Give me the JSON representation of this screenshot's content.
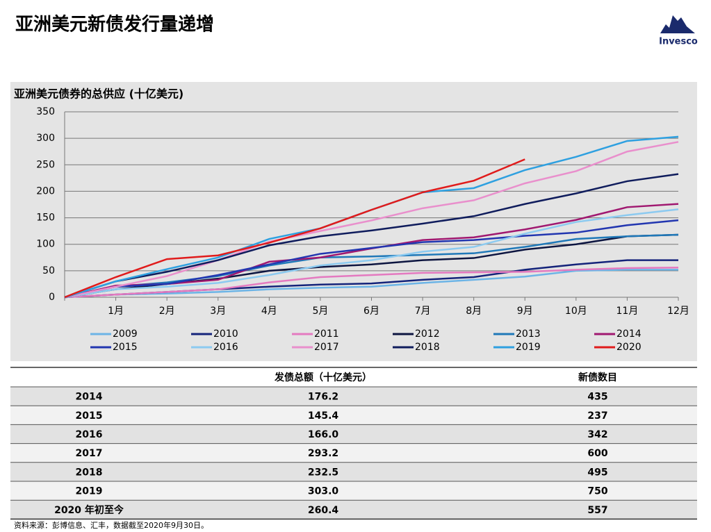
{
  "title": "亚洲美元新债发行量递增",
  "logo": "Invesco",
  "chart_data": {
    "type": "line",
    "title": "亚洲美元债券的总供应 (十亿美元)",
    "categories": [
      null,
      "1月",
      "2月",
      "3月",
      "4月",
      "5月",
      "6月",
      "7月",
      "8月",
      "9月",
      "10月",
      "11月",
      "12月"
    ],
    "ylim": [
      0,
      350
    ],
    "yticks": [
      0,
      50,
      100,
      150,
      200,
      250,
      300,
      350
    ],
    "grid": true,
    "series": [
      {
        "name": "2009",
        "color": "#6cb4e6",
        "values": [
          0,
          5,
          7,
          10,
          15,
          18,
          20,
          27,
          33,
          39,
          50,
          52,
          52
        ]
      },
      {
        "name": "2010",
        "color": "#14237a",
        "values": [
          0,
          5,
          10,
          15,
          20,
          24,
          26,
          33,
          38,
          52,
          62,
          70,
          70
        ]
      },
      {
        "name": "2011",
        "color": "#e47ac0",
        "values": [
          0,
          5,
          10,
          15,
          28,
          38,
          42,
          46,
          47,
          48,
          52,
          55,
          56
        ]
      },
      {
        "name": "2012",
        "color": "#0d1540",
        "values": [
          0,
          15,
          25,
          35,
          50,
          57,
          62,
          70,
          74,
          90,
          100,
          115,
          118
        ]
      },
      {
        "name": "2013",
        "color": "#1f78b8",
        "values": [
          0,
          20,
          28,
          40,
          60,
          75,
          77,
          80,
          83,
          95,
          110,
          115,
          118
        ]
      },
      {
        "name": "2014",
        "color": "#a01870",
        "values": [
          0,
          22,
          25,
          33,
          67,
          75,
          92,
          108,
          113,
          128,
          146,
          170,
          176.2
        ]
      },
      {
        "name": "2015",
        "color": "#2236b0",
        "values": [
          0,
          20,
          25,
          42,
          62,
          82,
          93,
          104,
          108,
          116,
          122,
          136,
          145.4
        ]
      },
      {
        "name": "2016",
        "color": "#8ccaf0",
        "values": [
          0,
          15,
          20,
          27,
          42,
          60,
          70,
          86,
          95,
          120,
          142,
          155,
          166
        ]
      },
      {
        "name": "2017",
        "color": "#e98fcc",
        "values": [
          0,
          20,
          40,
          70,
          105,
          125,
          145,
          168,
          183,
          215,
          238,
          275,
          293.2
        ]
      },
      {
        "name": "2018",
        "color": "#0f1c5c",
        "values": [
          0,
          30,
          48,
          70,
          98,
          115,
          126,
          139,
          153,
          176,
          196,
          219,
          232.5
        ]
      },
      {
        "name": "2019",
        "color": "#2ea0e0",
        "values": [
          0,
          30,
          53,
          75,
          110,
          130,
          165,
          198,
          206,
          240,
          265,
          295,
          303
        ]
      },
      {
        "name": "2020",
        "color": "#e01b1b",
        "values": [
          0,
          38,
          72,
          79,
          103,
          130,
          165,
          198,
          220,
          260.4,
          null,
          null,
          null
        ]
      }
    ]
  },
  "table": {
    "header": [
      "发债总额（十亿美元）",
      "新债数目"
    ],
    "rows": [
      [
        "2014",
        "176.2",
        "435"
      ],
      [
        "2015",
        "145.4",
        "237"
      ],
      [
        "2016",
        "166.0",
        "342"
      ],
      [
        "2017",
        "293.2",
        "600"
      ],
      [
        "2018",
        "232.5",
        "495"
      ],
      [
        "2019",
        "303.0",
        "750"
      ],
      [
        "2020 年初至今",
        "260.4",
        "557"
      ]
    ]
  },
  "source": "资料来源：彭博信息、汇丰，数据截至2020年9月30日。"
}
